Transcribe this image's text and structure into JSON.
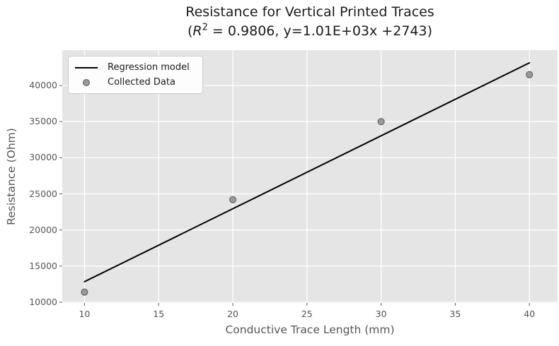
{
  "chart_data": {
    "type": "scatter",
    "title": "Resistance for Vertical Printed Traces",
    "subtitle": "(R² = 0.9806, y=1.01E+03x +2743)",
    "subtitle_parts": {
      "prefix": "(",
      "variable": "R",
      "exponent": "2",
      "rest": " = 0.9806, y=1.01E+03x +2743)"
    },
    "r_squared": 0.9806,
    "regression": {
      "slope": 1010,
      "intercept": 2743,
      "equation_label": "y=1.01E+03x +2743",
      "x_start": 10,
      "x_end": 40
    },
    "xlabel": "Conductive Trace Length (mm)",
    "ylabel": "Resistance (Ohm)",
    "x": [
      10,
      20,
      30,
      40
    ],
    "y": [
      11400,
      24200,
      35000,
      41500
    ],
    "xticks": [
      10,
      15,
      20,
      25,
      30,
      35,
      40
    ],
    "yticks": [
      10000,
      15000,
      20000,
      25000,
      30000,
      35000,
      40000
    ],
    "xlim": [
      8.5,
      41.9
    ],
    "ylim": [
      9900,
      44900
    ],
    "grid": true,
    "legend_position": "upper left",
    "legend": [
      {
        "label": "Regression model",
        "type": "line"
      },
      {
        "label": "Collected Data",
        "type": "marker"
      }
    ],
    "colors": {
      "figure_background": "#ffffff",
      "plot_background": "#e5e5e5",
      "grid": "#ffffff",
      "regression_line": "#000000",
      "marker_fill": "#999999",
      "marker_edge": "#595959",
      "tick": "#555555",
      "tick_label": "#555555",
      "axis_label": "#555555",
      "title_text": "#1a1a1a",
      "legend_border": "#cccccc"
    }
  }
}
